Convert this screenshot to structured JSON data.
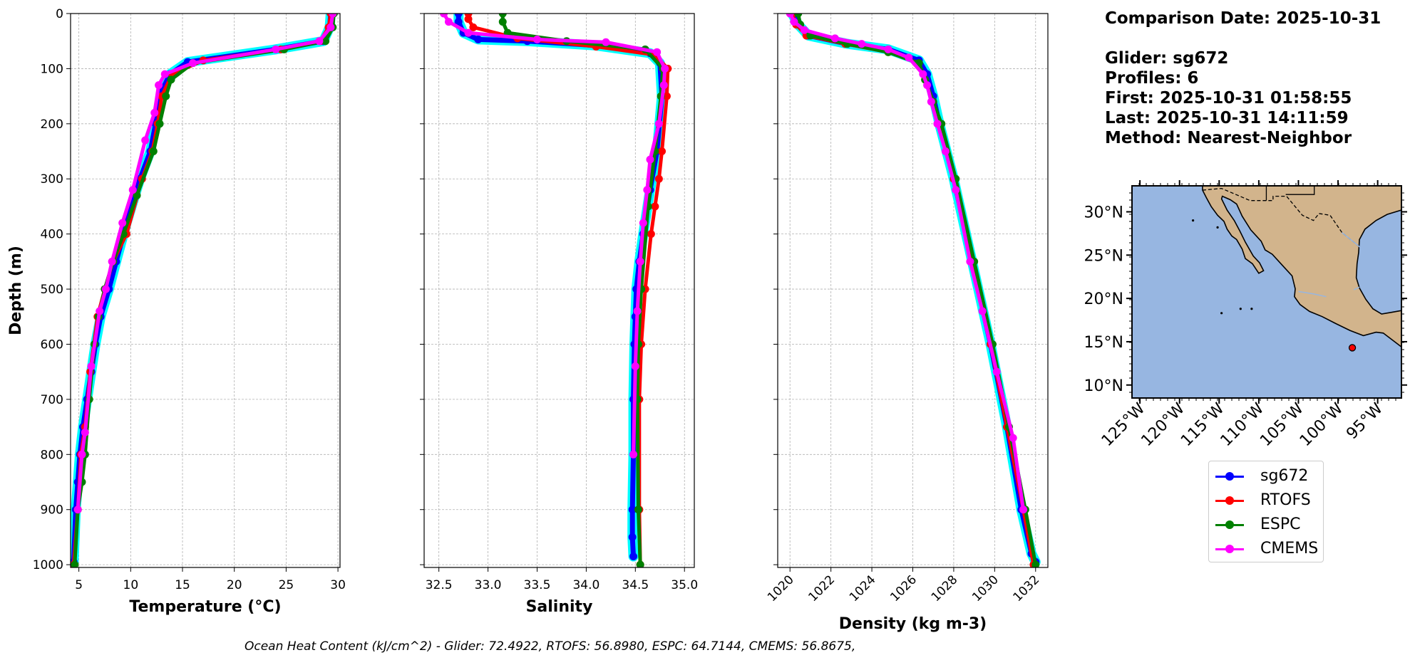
{
  "info": {
    "comparison": "Comparison Date: 2025-10-31",
    "glider": "Glider: sg672",
    "profiles": "Profiles: 6",
    "first": "First: 2025-10-31 01:58:55",
    "last": "Last: 2025-10-31 14:11:59",
    "method": "Method: Nearest-Neighbor"
  },
  "footer": "Ocean Heat Content (kJ/cm^2) - Glider: 72.4922,  RTOFS: 56.8980,  ESPC: 64.7144,  CMEMS: 56.8675,",
  "colors": {
    "sg672": "#0000ff",
    "RTOFS": "#ff0000",
    "ESPC": "#008000",
    "CMEMS": "#ff00ff",
    "glider_swath": "#00ffff",
    "ocean": "#97b6e1",
    "land": "#d2b48c"
  },
  "legend": [
    {
      "name": "sg672",
      "color": "#0000ff"
    },
    {
      "name": "RTOFS",
      "color": "#ff0000"
    },
    {
      "name": "ESPC",
      "color": "#008000"
    },
    {
      "name": "CMEMS",
      "color": "#ff00ff"
    }
  ],
  "chart_data": [
    {
      "type": "line",
      "xlabel": "Temperature (°C)",
      "ylabel": "Depth (m)",
      "xlim": [
        4.2,
        30.2
      ],
      "ylim": [
        1005,
        0
      ],
      "xticks": [
        5,
        10,
        15,
        20,
        25,
        30
      ],
      "yticks": [
        0,
        100,
        200,
        300,
        400,
        500,
        600,
        700,
        800,
        900,
        1000
      ],
      "grid": true,
      "series": [
        {
          "name": "sg672",
          "x": [
            29.3,
            29.2,
            28.6,
            24.0,
            15.5,
            13.8,
            13.0,
            12.4,
            11.9,
            10.9,
            9.6,
            8.6,
            7.9,
            7.1,
            6.6,
            6.2,
            5.8,
            5.4,
            5.1,
            4.9,
            4.7,
            4.5
          ],
          "y": [
            0,
            25,
            50,
            65,
            88,
            110,
            140,
            200,
            250,
            300,
            380,
            450,
            500,
            550,
            600,
            650,
            700,
            750,
            800,
            850,
            900,
            995
          ]
        },
        {
          "name": "RTOFS",
          "x": [
            29.3,
            29.1,
            28.3,
            24.5,
            17.0,
            14.0,
            13.0,
            12.6,
            12.1,
            11.1,
            9.6,
            8.3,
            7.5,
            6.8,
            6.1,
            5.6,
            5.2,
            4.9,
            4.5
          ],
          "y": [
            0,
            25,
            50,
            65,
            85,
            110,
            150,
            200,
            250,
            300,
            400,
            450,
            500,
            550,
            650,
            750,
            800,
            900,
            1000
          ]
        },
        {
          "name": "ESPC",
          "x": [
            29.6,
            29.5,
            28.8,
            24.8,
            16.0,
            13.9,
            13.4,
            12.8,
            12.2,
            10.6,
            9.3,
            8.3,
            7.5,
            6.9,
            6.5,
            6.0,
            5.6,
            5.3,
            4.9,
            4.6
          ],
          "y": [
            0,
            25,
            50,
            65,
            90,
            120,
            150,
            200,
            250,
            330,
            400,
            450,
            500,
            550,
            600,
            700,
            800,
            850,
            900,
            1000
          ]
        },
        {
          "name": "CMEMS",
          "x": [
            29.5,
            29.3,
            28.2,
            24.0,
            16.0,
            13.3,
            12.7,
            12.3,
            11.4,
            10.2,
            9.2,
            8.2,
            7.6,
            7.0,
            6.2,
            5.6,
            5.3,
            4.9
          ],
          "y": [
            0,
            25,
            50,
            65,
            90,
            110,
            130,
            180,
            230,
            320,
            380,
            450,
            500,
            540,
            640,
            760,
            800,
            900
          ]
        }
      ]
    },
    {
      "type": "line",
      "xlabel": "Salinity",
      "xlim": [
        32.35,
        35.1
      ],
      "ylim": [
        1005,
        0
      ],
      "xticks": [
        32.5,
        33.0,
        33.5,
        34.0,
        34.5,
        35.0
      ],
      "grid": true,
      "series": [
        {
          "name": "sg672",
          "x": [
            32.7,
            32.7,
            32.75,
            32.9,
            33.4,
            34.1,
            34.65,
            34.75,
            34.77,
            34.72,
            34.65,
            34.58,
            34.54,
            34.51,
            34.5,
            34.49,
            34.48,
            34.48,
            34.47,
            34.47,
            34.48
          ],
          "y": [
            0,
            15,
            35,
            47,
            50,
            58,
            72,
            90,
            150,
            250,
            320,
            400,
            450,
            500,
            550,
            600,
            700,
            800,
            900,
            950,
            985
          ]
        },
        {
          "name": "RTOFS",
          "x": [
            32.8,
            32.8,
            32.85,
            33.3,
            34.1,
            34.7,
            34.83,
            34.82,
            34.77,
            34.74,
            34.7,
            34.66,
            34.6,
            34.56,
            34.54,
            34.54,
            34.55
          ],
          "y": [
            0,
            10,
            25,
            45,
            60,
            75,
            100,
            150,
            250,
            300,
            350,
            400,
            500,
            600,
            700,
            900,
            1000
          ]
        },
        {
          "name": "ESPC",
          "x": [
            33.15,
            33.15,
            33.2,
            33.8,
            34.6,
            34.78,
            34.76,
            34.7,
            34.63,
            34.56,
            34.53,
            34.52,
            34.53,
            34.55
          ],
          "y": [
            0,
            15,
            35,
            50,
            65,
            100,
            150,
            250,
            350,
            500,
            600,
            700,
            900,
            1000
          ]
        },
        {
          "name": "CMEMS",
          "x": [
            32.55,
            32.6,
            32.8,
            33.5,
            34.2,
            34.72,
            34.8,
            34.79,
            34.74,
            34.65,
            34.62,
            34.58,
            34.55,
            34.52,
            34.5,
            34.48
          ],
          "y": [
            0,
            15,
            35,
            47,
            52,
            70,
            100,
            130,
            200,
            265,
            320,
            380,
            450,
            540,
            640,
            800
          ]
        }
      ]
    },
    {
      "type": "line",
      "xlabel": "Density (kg m-3)",
      "xlim": [
        1019.4,
        1032.6
      ],
      "ylim": [
        1005,
        0
      ],
      "xticks": [
        1020,
        1022,
        1024,
        1026,
        1028,
        1030,
        1032
      ],
      "grid": true,
      "series": [
        {
          "name": "sg672",
          "x": [
            1020.1,
            1020.4,
            1020.9,
            1022.8,
            1024.8,
            1026.3,
            1026.7,
            1027.0,
            1027.3,
            1028.0,
            1028.9,
            1029.8,
            1030.6,
            1031.3,
            1031.8,
            1032.0
          ],
          "y": [
            0,
            20,
            40,
            55,
            65,
            85,
            110,
            150,
            200,
            300,
            450,
            600,
            750,
            900,
            980,
            995
          ]
        },
        {
          "name": "RTOFS",
          "x": [
            1020.1,
            1020.3,
            1020.8,
            1022.7,
            1024.8,
            1026.3,
            1026.6,
            1027.0,
            1027.3,
            1028.0,
            1028.9,
            1029.8,
            1030.6,
            1031.4,
            1031.9
          ],
          "y": [
            0,
            20,
            40,
            55,
            70,
            90,
            120,
            160,
            200,
            300,
            450,
            600,
            750,
            900,
            1000
          ]
        },
        {
          "name": "ESPC",
          "x": [
            1020.4,
            1020.5,
            1021.0,
            1022.8,
            1024.8,
            1026.3,
            1026.6,
            1027.0,
            1027.4,
            1028.1,
            1029.0,
            1029.9,
            1030.7,
            1031.5,
            1032.0
          ],
          "y": [
            0,
            20,
            40,
            55,
            70,
            90,
            120,
            160,
            200,
            300,
            450,
            600,
            750,
            900,
            1000
          ]
        },
        {
          "name": "CMEMS",
          "x": [
            1020.0,
            1020.2,
            1020.7,
            1022.2,
            1023.5,
            1024.8,
            1025.8,
            1026.5,
            1026.7,
            1026.9,
            1027.2,
            1027.6,
            1028.1,
            1028.8,
            1029.4,
            1030.1,
            1030.9,
            1031.4
          ],
          "y": [
            0,
            15,
            30,
            45,
            55,
            65,
            80,
            110,
            130,
            160,
            200,
            250,
            320,
            450,
            540,
            650,
            770,
            900
          ]
        }
      ]
    },
    {
      "type": "map",
      "lat_ticks": [
        "10°N",
        "15°N",
        "20°N",
        "25°N",
        "30°N"
      ],
      "lon_ticks": [
        "125°W",
        "120°W",
        "115°W",
        "110°W",
        "105°W",
        "100°W",
        "95°W"
      ],
      "lon_range": [
        -126,
        -92
      ],
      "lat_range": [
        8.5,
        33
      ],
      "glider_position": {
        "lon": -98.2,
        "lat": 14.3
      }
    }
  ]
}
